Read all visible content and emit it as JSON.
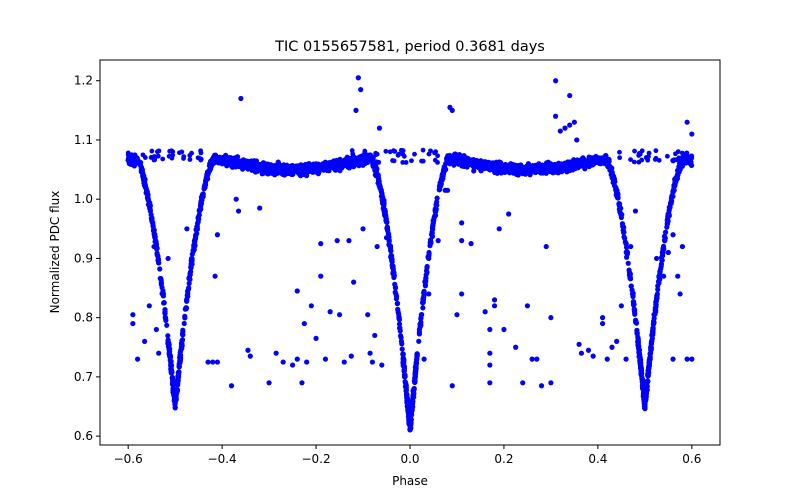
{
  "chart_data": {
    "type": "scatter",
    "title": "TIC 0155657581, period 0.3681 days",
    "xlabel": "Phase",
    "ylabel": "Normalized PDC flux",
    "xlim": [
      -0.66,
      0.66
    ],
    "ylim": [
      0.585,
      1.235
    ],
    "xticks": [
      -0.6,
      -0.4,
      -0.2,
      0.0,
      0.2,
      0.4,
      0.6
    ],
    "xtick_labels": [
      "−0.6",
      "−0.4",
      "−0.2",
      "0.0",
      "0.2",
      "0.4",
      "0.6"
    ],
    "yticks": [
      0.6,
      0.7,
      0.8,
      0.9,
      1.0,
      1.1,
      1.2
    ],
    "ytick_labels": [
      "0.6",
      "0.7",
      "0.8",
      "0.9",
      "1.0",
      "1.1",
      "1.2"
    ],
    "grid": false,
    "marker_color": "#0000ff",
    "phase_range": [
      -0.6,
      0.6
    ],
    "light_curve": {
      "baseline_flux": 1.05,
      "max_flux": 1.075,
      "primary_eclipse": {
        "phase": 0.0,
        "min_flux": 0.61
      },
      "secondary_eclipse": {
        "phase": 0.5,
        "min_flux": 0.65
      }
    },
    "outlier_points": [
      [
        -0.59,
        0.805
      ],
      [
        -0.59,
        0.79
      ],
      [
        -0.58,
        0.73
      ],
      [
        -0.565,
        0.76
      ],
      [
        -0.555,
        0.82
      ],
      [
        -0.545,
        0.92
      ],
      [
        -0.54,
        0.78
      ],
      [
        -0.535,
        0.74
      ],
      [
        -0.515,
        0.9
      ],
      [
        -0.475,
        0.95
      ],
      [
        -0.465,
        0.9
      ],
      [
        -0.43,
        0.725
      ],
      [
        -0.42,
        0.725
      ],
      [
        -0.41,
        0.725
      ],
      [
        -0.415,
        0.87
      ],
      [
        -0.41,
        0.94
      ],
      [
        -0.38,
        0.685
      ],
      [
        -0.37,
        1.0
      ],
      [
        -0.365,
        0.98
      ],
      [
        -0.36,
        1.17
      ],
      [
        -0.345,
        0.745
      ],
      [
        -0.34,
        0.735
      ],
      [
        -0.32,
        0.985
      ],
      [
        -0.3,
        0.69
      ],
      [
        -0.285,
        0.74
      ],
      [
        -0.27,
        0.725
      ],
      [
        -0.25,
        0.72
      ],
      [
        -0.24,
        0.73
      ],
      [
        -0.24,
        0.845
      ],
      [
        -0.23,
        0.69
      ],
      [
        -0.225,
        0.79
      ],
      [
        -0.22,
        0.725
      ],
      [
        -0.21,
        0.82
      ],
      [
        -0.2,
        0.765
      ],
      [
        -0.19,
        0.925
      ],
      [
        -0.19,
        0.87
      ],
      [
        -0.18,
        0.73
      ],
      [
        -0.17,
        0.81
      ],
      [
        -0.155,
        0.93
      ],
      [
        -0.15,
        0.805
      ],
      [
        -0.14,
        0.725
      ],
      [
        -0.13,
        0.93
      ],
      [
        -0.125,
        0.735
      ],
      [
        -0.12,
        0.86
      ],
      [
        -0.115,
        1.15
      ],
      [
        -0.11,
        1.205
      ],
      [
        -0.105,
        1.185
      ],
      [
        -0.1,
        0.95
      ],
      [
        -0.09,
        0.805
      ],
      [
        -0.085,
        0.74
      ],
      [
        -0.08,
        0.725
      ],
      [
        -0.075,
        0.77
      ],
      [
        -0.07,
        0.92
      ],
      [
        -0.065,
        1.12
      ],
      [
        -0.06,
        0.72
      ],
      [
        -0.05,
        0.935
      ],
      [
        0.02,
        0.78
      ],
      [
        0.03,
        0.73
      ],
      [
        0.04,
        0.84
      ],
      [
        0.06,
        0.93
      ],
      [
        0.075,
        1.015
      ],
      [
        0.08,
        1.015
      ],
      [
        0.085,
        1.155
      ],
      [
        0.09,
        1.15
      ],
      [
        0.09,
        0.685
      ],
      [
        0.1,
        0.805
      ],
      [
        0.11,
        0.93
      ],
      [
        0.11,
        0.96
      ],
      [
        0.11,
        0.84
      ],
      [
        0.13,
        0.925
      ],
      [
        0.16,
        0.81
      ],
      [
        0.17,
        0.74
      ],
      [
        0.17,
        0.78
      ],
      [
        0.17,
        0.72
      ],
      [
        0.17,
        0.69
      ],
      [
        0.18,
        0.83
      ],
      [
        0.18,
        0.82
      ],
      [
        0.19,
        0.95
      ],
      [
        0.2,
        0.78
      ],
      [
        0.21,
        0.975
      ],
      [
        0.225,
        0.75
      ],
      [
        0.24,
        0.69
      ],
      [
        0.25,
        0.82
      ],
      [
        0.26,
        0.73
      ],
      [
        0.27,
        0.73
      ],
      [
        0.28,
        0.685
      ],
      [
        0.29,
        0.92
      ],
      [
        0.3,
        0.8
      ],
      [
        0.3,
        0.69
      ],
      [
        0.31,
        1.2
      ],
      [
        0.31,
        1.14
      ],
      [
        0.32,
        1.115
      ],
      [
        0.33,
        1.12
      ],
      [
        0.34,
        1.125
      ],
      [
        0.34,
        1.175
      ],
      [
        0.35,
        1.13
      ],
      [
        0.355,
        1.1
      ],
      [
        0.36,
        0.755
      ],
      [
        0.365,
        0.74
      ],
      [
        0.38,
        0.745
      ],
      [
        0.39,
        0.735
      ],
      [
        0.41,
        0.8
      ],
      [
        0.41,
        0.79
      ],
      [
        0.42,
        0.73
      ],
      [
        0.43,
        0.75
      ],
      [
        0.44,
        0.76
      ],
      [
        0.45,
        0.82
      ],
      [
        0.46,
        0.73
      ],
      [
        0.47,
        0.92
      ],
      [
        0.48,
        0.98
      ],
      [
        0.525,
        0.9
      ],
      [
        0.53,
        0.87
      ],
      [
        0.54,
        0.87
      ],
      [
        0.55,
        0.91
      ],
      [
        0.56,
        0.94
      ],
      [
        0.56,
        0.73
      ],
      [
        0.57,
        0.87
      ],
      [
        0.575,
        0.84
      ],
      [
        0.58,
        0.92
      ],
      [
        0.59,
        0.73
      ],
      [
        0.6,
        0.73
      ],
      [
        0.59,
        1.13
      ],
      [
        0.6,
        1.11
      ]
    ],
    "upper_branch": {
      "flux_top": 1.083,
      "flux_bottom": 1.062,
      "segments": [
        [
          -0.6,
          -0.44
        ],
        [
          -0.13,
          0.06
        ],
        [
          0.44,
          0.6
        ]
      ]
    }
  }
}
